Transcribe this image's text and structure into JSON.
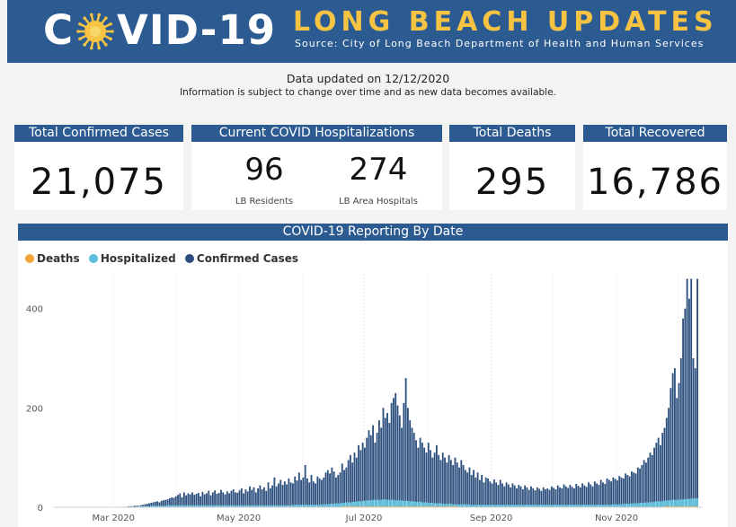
{
  "header": {
    "logo_left": "C",
    "logo_right": "VID-19",
    "headline": "LONG BEACH UPDATES",
    "source": "Source: City of Long Beach Department of Health and Human Services"
  },
  "updated_text": "Data updated on 12/12/2020",
  "note_text": "Information is subject to change over time and as new data becomes available.",
  "cards": {
    "confirmed": {
      "title": "Total Confirmed Cases",
      "value": "21,075"
    },
    "hospitalizations": {
      "title": "Current COVID Hospitalizations",
      "residents_value": "96",
      "residents_label": "LB Residents",
      "hospitals_value": "274",
      "hospitals_label": "LB Area Hospitals"
    },
    "deaths": {
      "title": "Total Deaths",
      "value": "295"
    },
    "recovered": {
      "title": "Total Recovered",
      "value": "16,786"
    }
  },
  "colors": {
    "deaths": "#f3a536",
    "hospitalized": "#5ac2dd",
    "confirmed": "#2c4f7e",
    "banner": "#2c5b92",
    "headline": "#f6c343"
  },
  "chart_data": {
    "type": "bar",
    "title": "COVID-19 Reporting By Date",
    "legend_position": "top-left",
    "legend": [
      "Deaths",
      "Hospitalized",
      "Confirmed Cases"
    ],
    "x_range": [
      "2020-02-01",
      "2020-12-12"
    ],
    "x_ticks": [
      "Mar 2020",
      "May 2020",
      "Jul 2020",
      "Sep 2020",
      "Nov 2020"
    ],
    "y_ticks": [
      0,
      200,
      400
    ],
    "ylim": [
      0,
      470
    ],
    "grid": "vertical dotted",
    "series": [
      {
        "name": "Confirmed Cases",
        "values": [
          0,
          0,
          0,
          0,
          0,
          0,
          0,
          0,
          0,
          0,
          0,
          0,
          0,
          0,
          0,
          0,
          0,
          0,
          0,
          0,
          0,
          0,
          0,
          0,
          0,
          0,
          0,
          0,
          0,
          0,
          0,
          0,
          1,
          1,
          1,
          1,
          2,
          2,
          2,
          3,
          3,
          3,
          4,
          5,
          6,
          7,
          8,
          9,
          10,
          11,
          12,
          10,
          13,
          14,
          15,
          16,
          18,
          20,
          19,
          22,
          25,
          28,
          20,
          30,
          24,
          28,
          26,
          30,
          25,
          27,
          29,
          22,
          31,
          26,
          28,
          33,
          24,
          30,
          34,
          27,
          29,
          35,
          30,
          26,
          32,
          28,
          33,
          36,
          30,
          29,
          34,
          38,
          28,
          36,
          32,
          42,
          35,
          40,
          30,
          38,
          44,
          36,
          40,
          33,
          50,
          38,
          44,
          60,
          42,
          48,
          55,
          45,
          52,
          46,
          58,
          50,
          48,
          62,
          54,
          70,
          55,
          60,
          85,
          58,
          50,
          65,
          52,
          48,
          62,
          58,
          55,
          60,
          70,
          75,
          68,
          80,
          72,
          60,
          65,
          70,
          88,
          75,
          80,
          95,
          105,
          90,
          110,
          100,
          125,
          115,
          130,
          120,
          140,
          155,
          145,
          165,
          130,
          150,
          175,
          160,
          200,
          180,
          190,
          170,
          210,
          220,
          230,
          205,
          185,
          160,
          210,
          260,
          200,
          175,
          160,
          150,
          135,
          120,
          140,
          130,
          120,
          110,
          130,
          115,
          100,
          110,
          125,
          105,
          95,
          110,
          100,
          90,
          105,
          95,
          85,
          100,
          90,
          80,
          95,
          85,
          75,
          70,
          80,
          65,
          75,
          60,
          70,
          55,
          65,
          50,
          60,
          58,
          52,
          48,
          56,
          50,
          45,
          55,
          48,
          42,
          50,
          46,
          40,
          48,
          44,
          38,
          45,
          42,
          36,
          44,
          40,
          35,
          42,
          38,
          34,
          40,
          37,
          33,
          40,
          36,
          38,
          35,
          42,
          39,
          36,
          44,
          40,
          38,
          46,
          42,
          39,
          45,
          41,
          38,
          47,
          43,
          40,
          48,
          44,
          41,
          50,
          46,
          42,
          52,
          48,
          45,
          55,
          50,
          47,
          58,
          55,
          52,
          60,
          57,
          54,
          63,
          60,
          58,
          68,
          65,
          62,
          72,
          70,
          68,
          80,
          78,
          85,
          95,
          90,
          100,
          110,
          105,
          120,
          130,
          140,
          125,
          150,
          160,
          180,
          200,
          240,
          270,
          280,
          220,
          250,
          300,
          380,
          400,
          460,
          420,
          460,
          300,
          280,
          460
        ]
      },
      {
        "name": "Hospitalized",
        "values": [
          0,
          0,
          0,
          0,
          0,
          0,
          0,
          0,
          0,
          0,
          0,
          0,
          0,
          0,
          0,
          0,
          0,
          0,
          0,
          0,
          0,
          0,
          0,
          0,
          0,
          0,
          0,
          0,
          0,
          0,
          0,
          0,
          0,
          0,
          0,
          1,
          1,
          1,
          1,
          1,
          1,
          2,
          2,
          2,
          2,
          2,
          2,
          3,
          3,
          3,
          3,
          3,
          3,
          3,
          3,
          4,
          4,
          4,
          4,
          4,
          4,
          4,
          4,
          4,
          4,
          4,
          4,
          4,
          4,
          4,
          4,
          4,
          4,
          4,
          4,
          4,
          4,
          4,
          4,
          4,
          4,
          4,
          4,
          4,
          4,
          4,
          4,
          4,
          4,
          4,
          4,
          4,
          4,
          4,
          4,
          4,
          4,
          4,
          4,
          4,
          4,
          4,
          4,
          4,
          4,
          4,
          4,
          4,
          4,
          4,
          4,
          4,
          4,
          4,
          4,
          4,
          5,
          5,
          5,
          5,
          5,
          5,
          5,
          5,
          5,
          5,
          5,
          5,
          5,
          5,
          6,
          6,
          6,
          6,
          7,
          7,
          7,
          8,
          8,
          8,
          9,
          9,
          10,
          10,
          10,
          11,
          11,
          12,
          12,
          12,
          13,
          13,
          14,
          14,
          14,
          15,
          15,
          15,
          15,
          15,
          16,
          16,
          15,
          15,
          15,
          15,
          14,
          14,
          14,
          14,
          13,
          13,
          13,
          12,
          12,
          12,
          11,
          11,
          11,
          10,
          10,
          10,
          9,
          9,
          9,
          8,
          8,
          8,
          8,
          7,
          7,
          7,
          7,
          7,
          6,
          6,
          6,
          6,
          6,
          6,
          6,
          6,
          5,
          5,
          5,
          5,
          5,
          5,
          5,
          5,
          5,
          5,
          5,
          5,
          5,
          5,
          5,
          5,
          5,
          5,
          5,
          5,
          5,
          5,
          5,
          5,
          5,
          5,
          5,
          5,
          5,
          5,
          5,
          5,
          5,
          5,
          5,
          5,
          5,
          5,
          5,
          5,
          5,
          5,
          5,
          5,
          5,
          5,
          5,
          5,
          5,
          5,
          5,
          5,
          5,
          5,
          5,
          5,
          5,
          5,
          5,
          5,
          5,
          5,
          5,
          5,
          5,
          5,
          5,
          5,
          5,
          5,
          6,
          6,
          6,
          6,
          6,
          7,
          7,
          7,
          7,
          8,
          8,
          8,
          8,
          9,
          9,
          9,
          10,
          10,
          10,
          11,
          11,
          12,
          12,
          12,
          13,
          13,
          14,
          14,
          14,
          15,
          15,
          15,
          15,
          16,
          16,
          16,
          17,
          17,
          17,
          18,
          18,
          18
        ]
      },
      {
        "name": "Deaths",
        "values": [
          0,
          0,
          0,
          0,
          0,
          0,
          0,
          0,
          0,
          0,
          0,
          0,
          0,
          0,
          0,
          0,
          0,
          0,
          0,
          0,
          0,
          0,
          0,
          0,
          0,
          0,
          0,
          0,
          0,
          0,
          0,
          0,
          0,
          0,
          0,
          0,
          0,
          0,
          0,
          0,
          0,
          0,
          0,
          0,
          0,
          0,
          0,
          0,
          0,
          0,
          0,
          0,
          1,
          0,
          0,
          1,
          0,
          0,
          1,
          0,
          1,
          0,
          1,
          0,
          1,
          0,
          1,
          1,
          0,
          1,
          0,
          1,
          1,
          0,
          1,
          1,
          0,
          1,
          1,
          0,
          1,
          1,
          1,
          0,
          1,
          1,
          1,
          1,
          0,
          1,
          1,
          1,
          1,
          1,
          1,
          1,
          1,
          1,
          1,
          1,
          1,
          1,
          1,
          1,
          1,
          1,
          1,
          1,
          1,
          1,
          1,
          1,
          1,
          1,
          1,
          1,
          1,
          1,
          1,
          1,
          1,
          1,
          1,
          1,
          1,
          1,
          1,
          1,
          1,
          1,
          1,
          1,
          1,
          1,
          1,
          1,
          1,
          1,
          1,
          1,
          2,
          2,
          2,
          2,
          2,
          2,
          2,
          2,
          2,
          2,
          2,
          2,
          2,
          2,
          2,
          2,
          2,
          2,
          2,
          2,
          2,
          2,
          2,
          2,
          2,
          2,
          2,
          2,
          2,
          2,
          2,
          2,
          2,
          2,
          2,
          2,
          2,
          2,
          2,
          2,
          2,
          2,
          2,
          2,
          2,
          2,
          2,
          2,
          2,
          2,
          2,
          2,
          2,
          2,
          2,
          2,
          2,
          1,
          1,
          1,
          1,
          1,
          1,
          1,
          1,
          1,
          1,
          1,
          1,
          1,
          1,
          1,
          1,
          1,
          1,
          1,
          1,
          1,
          1,
          1,
          1,
          1,
          1,
          1,
          1,
          1,
          1,
          1,
          1,
          1,
          1,
          1,
          1,
          1,
          1,
          1,
          1,
          1,
          1,
          1,
          1,
          1,
          1,
          1,
          1,
          1,
          1,
          1,
          1,
          1,
          1,
          1,
          1,
          1,
          1,
          1,
          1,
          1,
          1,
          1,
          1,
          1,
          1,
          1,
          1,
          1,
          1,
          1,
          1,
          1,
          1,
          1,
          1,
          1,
          1,
          1,
          1,
          1,
          1,
          1,
          1,
          1,
          1,
          1,
          1,
          1,
          1,
          1,
          1,
          1,
          1,
          1,
          1,
          1,
          1,
          1,
          1,
          2,
          2,
          2,
          2,
          2,
          2,
          2,
          2,
          2,
          2,
          2,
          2,
          2,
          2,
          2,
          2,
          2
        ]
      }
    ]
  }
}
